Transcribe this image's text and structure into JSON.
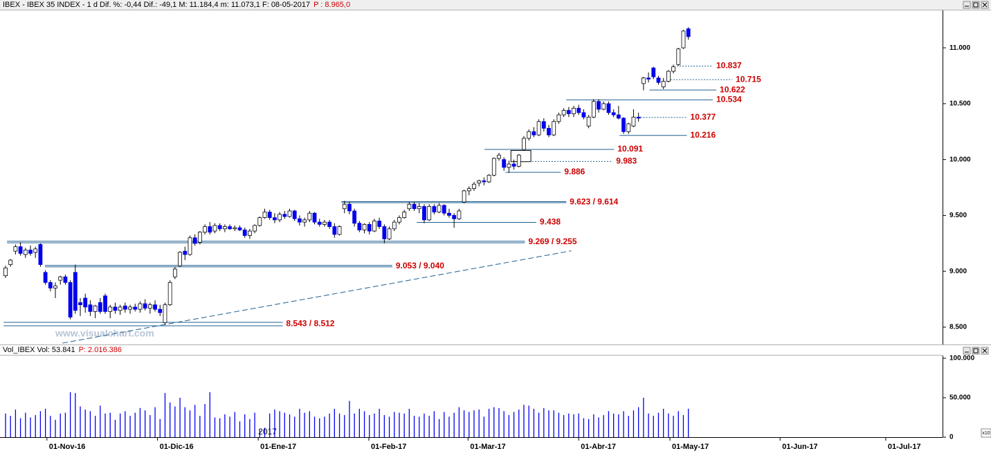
{
  "chart_data": [
    {
      "type": "candlestick",
      "title": "IBEX - IBEX 35 INDEX - 1 d  Dif. %: -0,44  Dif.: -49,1  M: 11.184,4  m: 11.073,1  F: 08-05-2017",
      "subtitle": "P : 8.965,0",
      "watermark": "www.visualchart.com",
      "up_color": "#ffffff",
      "down_color": "#0000ee",
      "line_color": "#1f5f8f",
      "xlim": [
        -1.11,
        188
      ],
      "ylim": [
        8345,
        11335
      ],
      "yticks": [
        {
          "value": 8500,
          "label": "8.500"
        },
        {
          "value": 9000,
          "label": "9.000"
        },
        {
          "value": 9500,
          "label": "9.500"
        },
        {
          "value": 10000,
          "label": "10.000"
        },
        {
          "value": 10500,
          "label": "10.500"
        },
        {
          "value": 11000,
          "label": "11.000"
        }
      ],
      "ohlc": [
        [
          8960,
          9050,
          8940,
          9030
        ],
        [
          9060,
          9110,
          9040,
          9100
        ],
        [
          9180,
          9240,
          9150,
          9220
        ],
        [
          9220,
          9260,
          9140,
          9160
        ],
        [
          9150,
          9210,
          9120,
          9190
        ],
        [
          9190,
          9230,
          9140,
          9160
        ],
        [
          9170,
          9220,
          9120,
          9200
        ],
        [
          9240,
          9250,
          9040,
          9060
        ],
        [
          8990,
          9010,
          8880,
          8900
        ],
        [
          8900,
          8920,
          8820,
          8850
        ],
        [
          8850,
          8900,
          8760,
          8870
        ],
        [
          8920,
          8960,
          8880,
          8950
        ],
        [
          8950,
          8970,
          8880,
          8900
        ],
        [
          8900,
          8920,
          8570,
          8590
        ],
        [
          8990,
          9060,
          8620,
          8650
        ],
        [
          8720,
          8760,
          8600,
          8700
        ],
        [
          8760,
          8800,
          8630,
          8680
        ],
        [
          8700,
          8740,
          8600,
          8640
        ],
        [
          8640,
          8700,
          8580,
          8690
        ],
        [
          8720,
          8760,
          8620,
          8640
        ],
        [
          8780,
          8800,
          8620,
          8640
        ],
        [
          8640,
          8700,
          8580,
          8680
        ],
        [
          8680,
          8720,
          8620,
          8650
        ],
        [
          8650,
          8700,
          8610,
          8680
        ],
        [
          8690,
          8720,
          8630,
          8660
        ],
        [
          8660,
          8700,
          8620,
          8680
        ],
        [
          8680,
          8710,
          8640,
          8660
        ],
        [
          8660,
          8730,
          8630,
          8710
        ],
        [
          8710,
          8750,
          8650,
          8670
        ],
        [
          8670,
          8720,
          8620,
          8700
        ],
        [
          8700,
          8740,
          8640,
          8660
        ],
        [
          8660,
          8700,
          8600,
          8630
        ],
        [
          8540,
          8720,
          8520,
          8700
        ],
        [
          8700,
          8920,
          8690,
          8900
        ],
        [
          8950,
          9040,
          8930,
          9020
        ],
        [
          9050,
          9180,
          9040,
          9170
        ],
        [
          9180,
          9220,
          9100,
          9150
        ],
        [
          9150,
          9320,
          9140,
          9300
        ],
        [
          9300,
          9330,
          9230,
          9250
        ],
        [
          9260,
          9360,
          9240,
          9350
        ],
        [
          9350,
          9420,
          9330,
          9400
        ],
        [
          9400,
          9440,
          9330,
          9350
        ],
        [
          9360,
          9430,
          9340,
          9410
        ],
        [
          9410,
          9430,
          9360,
          9380
        ],
        [
          9380,
          9420,
          9350,
          9400
        ],
        [
          9400,
          9420,
          9370,
          9380
        ],
        [
          9380,
          9410,
          9360,
          9390
        ],
        [
          9390,
          9410,
          9360,
          9370
        ],
        [
          9370,
          9390,
          9300,
          9320
        ],
        [
          9320,
          9380,
          9290,
          9360
        ],
        [
          9360,
          9420,
          9340,
          9410
        ],
        [
          9410,
          9490,
          9400,
          9480
        ],
        [
          9480,
          9560,
          9470,
          9530
        ],
        [
          9530,
          9550,
          9460,
          9480
        ],
        [
          9480,
          9520,
          9430,
          9460
        ],
        [
          9460,
          9530,
          9440,
          9510
        ],
        [
          9510,
          9540,
          9470,
          9490
        ],
        [
          9490,
          9560,
          9480,
          9540
        ],
        [
          9540,
          9550,
          9450,
          9470
        ],
        [
          9470,
          9500,
          9410,
          9440
        ],
        [
          9440,
          9480,
          9400,
          9460
        ],
        [
          9460,
          9540,
          9440,
          9520
        ],
        [
          9520,
          9530,
          9420,
          9440
        ],
        [
          9440,
          9470,
          9400,
          9420
        ],
        [
          9420,
          9460,
          9400,
          9440
        ],
        [
          9440,
          9460,
          9380,
          9400
        ],
        [
          9400,
          9430,
          9300,
          9330
        ],
        [
          9330,
          9410,
          9320,
          9400
        ],
        [
          9560,
          9630,
          9520,
          9600
        ],
        [
          9600,
          9620,
          9510,
          9540
        ],
        [
          9540,
          9560,
          9400,
          9430
        ],
        [
          9430,
          9450,
          9350,
          9370
        ],
        [
          9370,
          9430,
          9340,
          9420
        ],
        [
          9420,
          9440,
          9330,
          9360
        ],
        [
          9360,
          9470,
          9350,
          9450
        ],
        [
          9450,
          9480,
          9380,
          9400
        ],
        [
          9400,
          9420,
          9250,
          9290
        ],
        [
          9290,
          9400,
          9280,
          9380
        ],
        [
          9380,
          9460,
          9360,
          9440
        ],
        [
          9440,
          9500,
          9420,
          9480
        ],
        [
          9480,
          9550,
          9470,
          9530
        ],
        [
          9560,
          9620,
          9540,
          9600
        ],
        [
          9600,
          9620,
          9540,
          9560
        ],
        [
          9560,
          9610,
          9520,
          9580
        ],
        [
          9580,
          9600,
          9430,
          9460
        ],
        [
          9460,
          9600,
          9450,
          9580
        ],
        [
          9580,
          9600,
          9510,
          9530
        ],
        [
          9530,
          9610,
          9520,
          9590
        ],
        [
          9590,
          9600,
          9500,
          9520
        ],
        [
          9520,
          9560,
          9480,
          9500
        ],
        [
          9500,
          9520,
          9390,
          9470
        ],
        [
          9470,
          9560,
          9460,
          9540
        ],
        [
          9620,
          9730,
          9610,
          9720
        ],
        [
          9720,
          9760,
          9680,
          9740
        ],
        [
          9740,
          9800,
          9720,
          9780
        ],
        [
          9790,
          9820,
          9760,
          9810
        ],
        [
          9810,
          9840,
          9770,
          9800
        ],
        [
          9800,
          9870,
          9790,
          9860
        ],
        [
          9860,
          10020,
          9850,
          10010
        ],
        [
          10010,
          10060,
          9990,
          10040
        ],
        [
          10000,
          10020,
          9900,
          9930
        ],
        [
          9930,
          9990,
          9880,
          9960
        ],
        [
          9960,
          10000,
          9910,
          9940
        ],
        [
          9940,
          10050,
          9930,
          10040
        ],
        [
          10090,
          10210,
          10080,
          10190
        ],
        [
          10190,
          10270,
          10170,
          10250
        ],
        [
          10250,
          10290,
          10200,
          10220
        ],
        [
          10220,
          10360,
          10210,
          10340
        ],
        [
          10340,
          10370,
          10250,
          10280
        ],
        [
          10280,
          10310,
          10200,
          10220
        ],
        [
          10220,
          10360,
          10210,
          10340
        ],
        [
          10340,
          10420,
          10320,
          10400
        ],
        [
          10400,
          10460,
          10380,
          10440
        ],
        [
          10440,
          10470,
          10380,
          10410
        ],
        [
          10410,
          10480,
          10380,
          10460
        ],
        [
          10460,
          10490,
          10400,
          10420
        ],
        [
          10420,
          10450,
          10360,
          10380
        ],
        [
          10300,
          10400,
          10280,
          10380
        ],
        [
          10380,
          10540,
          10370,
          10520
        ],
        [
          10520,
          10540,
          10420,
          10450
        ],
        [
          10450,
          10520,
          10440,
          10500
        ],
        [
          10500,
          10520,
          10400,
          10420
        ],
        [
          10420,
          10450,
          10380,
          10400
        ],
        [
          10400,
          10480,
          10360,
          10370
        ],
        [
          10370,
          10380,
          10230,
          10250
        ],
        [
          10250,
          10330,
          10230,
          10320
        ],
        [
          10300,
          10450,
          10290,
          10380
        ],
        [
          10380,
          10420,
          10340,
          10370
        ],
        [
          10680,
          10740,
          10620,
          10730
        ],
        [
          10730,
          10780,
          10690,
          10720
        ],
        [
          10820,
          10830,
          10720,
          10740
        ],
        [
          10730,
          10750,
          10670,
          10690
        ],
        [
          10650,
          10730,
          10630,
          10700
        ],
        [
          10700,
          10800,
          10690,
          10790
        ],
        [
          10790,
          10850,
          10770,
          10830
        ],
        [
          10850,
          11000,
          10840,
          10990
        ],
        [
          11000,
          11160,
          10990,
          11150
        ],
        [
          11170,
          11184,
          11073,
          11100
        ]
      ],
      "levels": [
        {
          "label": "10.837",
          "values": [
            10837
          ],
          "start": 134.7,
          "end": 141.9,
          "dashed": true
        },
        {
          "label": "10.715",
          "values": [
            10715
          ],
          "start": 132.9,
          "end": 145.8,
          "dashed": true
        },
        {
          "label": "10.622",
          "values": [
            10622
          ],
          "start": 129.2,
          "end": 142.6,
          "dashed": false
        },
        {
          "label": "10.534",
          "values": [
            10534
          ],
          "start": 112.5,
          "end": 141.9,
          "dashed": false
        },
        {
          "label": "10.377",
          "values": [
            10377
          ],
          "start": 127.4,
          "end": 136.7,
          "dashed": true
        },
        {
          "label": "10.216",
          "values": [
            10216
          ],
          "start": 123.2,
          "end": 136.7,
          "dashed": false
        },
        {
          "label": "10.091",
          "values": [
            10091
          ],
          "start": 96.1,
          "end": 122.1,
          "dashed": false
        },
        {
          "label": "9.983",
          "values": [
            9983
          ],
          "start": 105.1,
          "end": 121.8,
          "dashed": true
        },
        {
          "label": "9.886",
          "values": [
            9886
          ],
          "start": 100.3,
          "end": 111.4,
          "dashed": false
        },
        {
          "label": "9.623 / 9.614",
          "values": [
            9623,
            9614
          ],
          "start": 67.4,
          "end": 112.5,
          "dashed": false
        },
        {
          "label": "9.438",
          "values": [
            9438
          ],
          "start": 82.5,
          "end": 106.5,
          "dashed": false
        },
        {
          "label": "9.269 / 9.255",
          "values": [
            9269,
            9255
          ],
          "start": 0.3,
          "end": 104.2,
          "dashed": false
        },
        {
          "label": "9.053 / 9.040",
          "values": [
            9053,
            9040
          ],
          "start": 7.9,
          "end": 77.6,
          "dashed": false
        },
        {
          "label": "8.543 / 8.512",
          "values": [
            8543,
            8512
          ],
          "start": -0.4,
          "end": 55.6,
          "dashed": false
        }
      ],
      "trendline": {
        "x": [
          11.4,
          113.5
        ],
        "y": [
          8357,
          9183
        ],
        "dashed": true
      },
      "box": {
        "x": [
          101.4,
          105.4
        ],
        "y": [
          9981,
          10081
        ]
      }
    },
    {
      "type": "volume",
      "title": "Vol_IBEX Vol: 53.841",
      "subtitle": "P: 2.016.386",
      "color": "#0000ee",
      "xlim": [
        -1.11,
        188
      ],
      "ylim": [
        0,
        100000
      ],
      "yticks": [
        0,
        {
          "value": 50000,
          "label": "50.000"
        },
        {
          "value": 100000,
          "label": "100.000"
        }
      ],
      "scale_note": "x10",
      "year_label": "2017",
      "xticks": [
        {
          "value": 8.3,
          "label": "01-Nov-16"
        },
        {
          "value": 30.5,
          "label": "01-Dic-16"
        },
        {
          "value": 50.7,
          "label": "01-Ene-17"
        },
        {
          "value": 72.9,
          "label": "01-Feb-17"
        },
        {
          "value": 92.8,
          "label": "01-Mar-17"
        },
        {
          "value": 115,
          "label": "01-Abr-17"
        },
        {
          "value": 133.3,
          "label": "01-May-17"
        },
        {
          "value": 155.4,
          "label": "01-Jun-17"
        },
        {
          "value": 176.6,
          "label": "01-Jul-17"
        }
      ],
      "values": [
        30000,
        27000,
        35000,
        24000,
        31000,
        25000,
        28000,
        33000,
        36000,
        27000,
        22000,
        30000,
        31000,
        57000,
        56000,
        39000,
        35000,
        33000,
        27000,
        40000,
        30000,
        31000,
        22000,
        30000,
        33000,
        27000,
        31000,
        37000,
        34000,
        28000,
        38000,
        23000,
        56000,
        44000,
        39000,
        50000,
        38000,
        34000,
        41000,
        27000,
        42000,
        57000,
        25000,
        24000,
        29000,
        26000,
        32000,
        20000,
        29000,
        23000,
        31000,
        9000,
        12000,
        30000,
        35000,
        33000,
        31000,
        29000,
        26000,
        36000,
        31000,
        33000,
        26000,
        24000,
        26000,
        30000,
        36000,
        30000,
        28000,
        46000,
        30000,
        36000,
        33000,
        28000,
        30000,
        36000,
        28000,
        26000,
        32000,
        31000,
        30000,
        36000,
        27000,
        26000,
        30000,
        27000,
        33000,
        23000,
        32000,
        26000,
        31000,
        38000,
        34000,
        32000,
        34000,
        35000,
        26000,
        36000,
        38000,
        37000,
        33000,
        28000,
        32000,
        35000,
        41000,
        40000,
        36000,
        31000,
        37000,
        34000,
        34000,
        31000,
        28000,
        30000,
        29000,
        30000,
        24000,
        23000,
        29000,
        25000,
        28000,
        33000,
        30000,
        29000,
        33000,
        27000,
        34000,
        38000,
        50000,
        30000,
        27000,
        31000,
        36000,
        30000,
        27000,
        33000,
        28000,
        36000
      ]
    }
  ]
}
